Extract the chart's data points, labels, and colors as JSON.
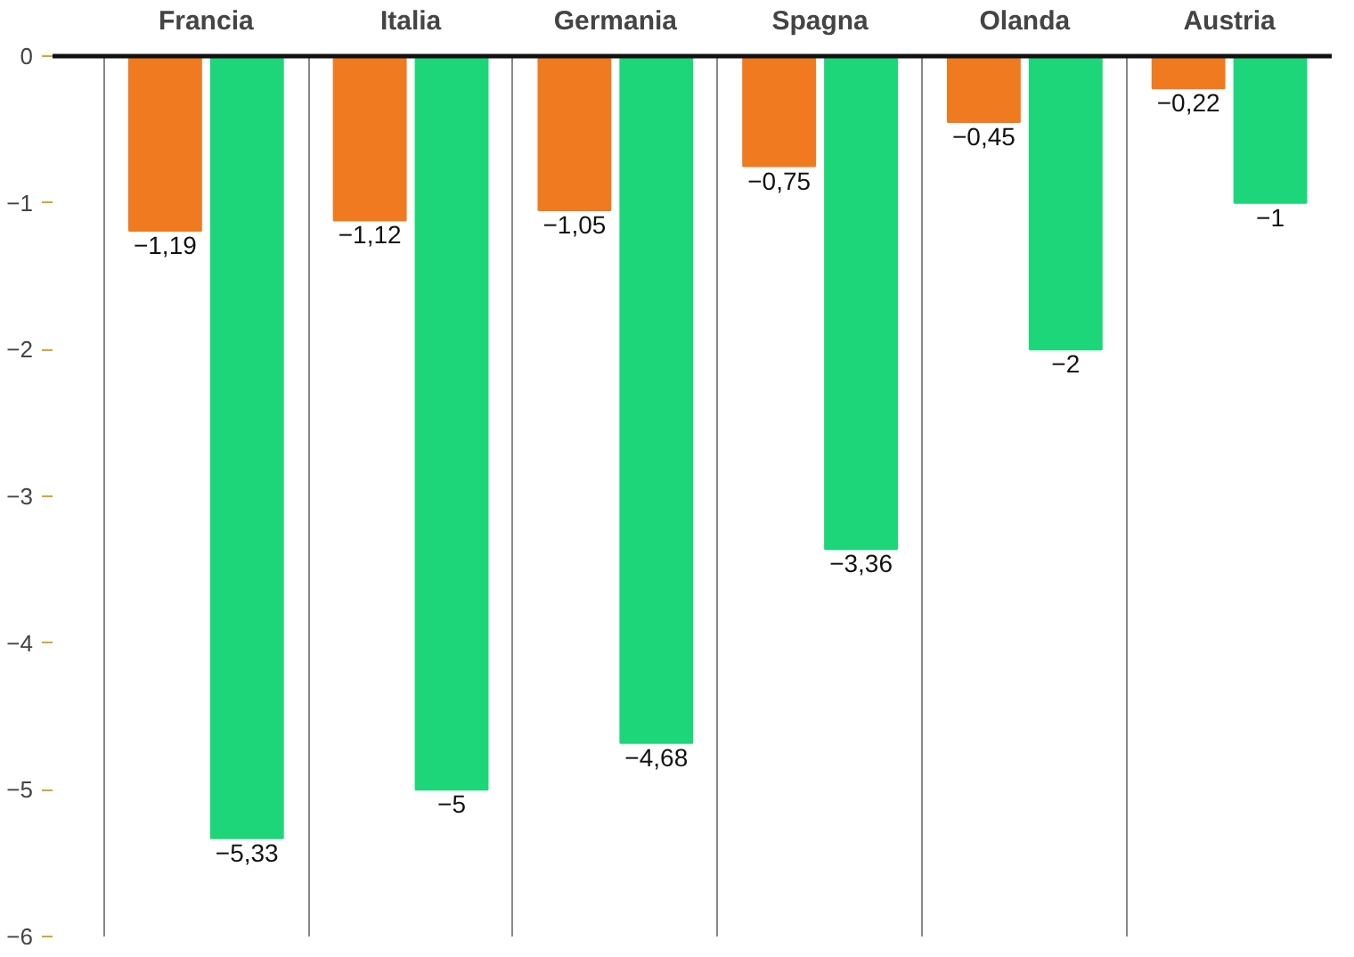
{
  "chart_data": {
    "type": "bar",
    "categories": [
      "Francia",
      "Italia",
      "Germania",
      "Spagna",
      "Olanda",
      "Austria"
    ],
    "series": [
      {
        "color": "#f07a20",
        "values": [
          -1.19,
          -1.12,
          -1.05,
          -0.75,
          -0.45,
          -0.22
        ],
        "value_labels": [
          "−1,19",
          "−1,12",
          "−1,05",
          "−0,75",
          "−0,45",
          "−0,22"
        ]
      },
      {
        "color": "#1ed67a",
        "values": [
          -5.33,
          -5,
          -4.68,
          -3.36,
          -2,
          -1
        ],
        "value_labels": [
          "−5,33",
          "−5",
          "−4,68",
          "−3,36",
          "−2",
          "−1"
        ]
      }
    ],
    "ylim": [
      -6,
      0
    ],
    "yticks": [
      0,
      -1,
      -2,
      -3,
      -4,
      -5,
      -6
    ],
    "grid": "x"
  }
}
